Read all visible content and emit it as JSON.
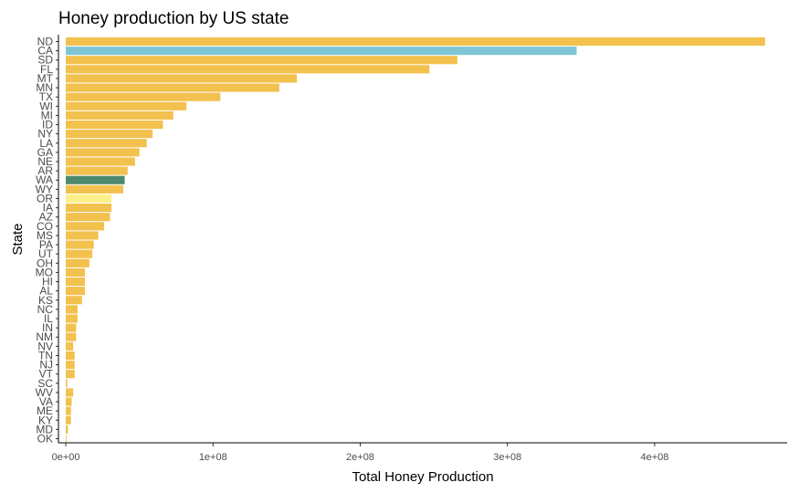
{
  "colors": {
    "default": "#f2c14e",
    "CA": "#7ec6d6",
    "WA": "#4e8a6e",
    "OR": "#fdf08a",
    "axis": "#000000",
    "tick": "#333333"
  },
  "chart_data": {
    "type": "bar",
    "orientation": "horizontal",
    "title": "Honey production by US state",
    "xlabel": "Total Honey Production",
    "ylabel": "State",
    "xlim": [
      -5000000.0,
      490000000.0
    ],
    "xticks": [
      0,
      100000000,
      200000000,
      300000000,
      400000000
    ],
    "xtick_labels": [
      "0e+00",
      "1e+08",
      "2e+08",
      "3e+08",
      "4e+08"
    ],
    "grid": false,
    "highlighted": [
      "CA",
      "WA",
      "OR"
    ],
    "categories": [
      "ND",
      "CA",
      "SD",
      "FL",
      "MT",
      "MN",
      "TX",
      "WI",
      "MI",
      "ID",
      "NY",
      "LA",
      "GA",
      "NE",
      "AR",
      "WA",
      "WY",
      "OR",
      "IA",
      "AZ",
      "CO",
      "MS",
      "PA",
      "UT",
      "OH",
      "MO",
      "HI",
      "AL",
      "KS",
      "NC",
      "IL",
      "IN",
      "NM",
      "NV",
      "TN",
      "NJ",
      "VT",
      "SC",
      "WV",
      "VA",
      "ME",
      "KY",
      "MD",
      "OK"
    ],
    "values": [
      475000000,
      347000000,
      266000000,
      247000000,
      157000000,
      145000000,
      105000000,
      82000000,
      73000000,
      66000000,
      59000000,
      55000000,
      50000000,
      47000000,
      42000000,
      40000000,
      39000000,
      31000000,
      31000000,
      30000000,
      26000000,
      22000000,
      19000000,
      18000000,
      16000000,
      13000000,
      13000000,
      13000000,
      11000000,
      8000000,
      8000000,
      7000000,
      7000000,
      5000000,
      6000000,
      6000000,
      6000000,
      1000000,
      5000000,
      4000000,
      3500000,
      3500000,
      1500000,
      500000
    ]
  }
}
